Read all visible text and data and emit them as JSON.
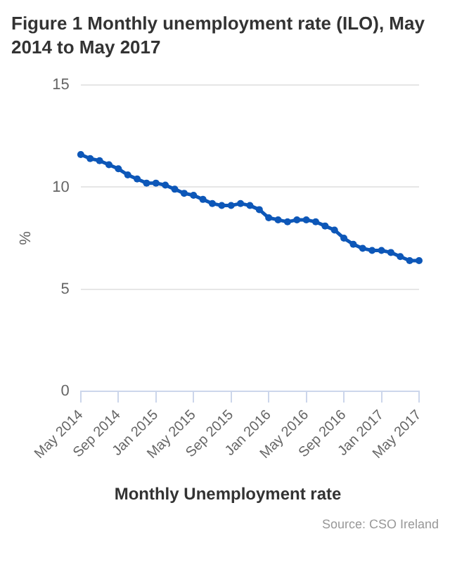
{
  "chart_data": {
    "type": "line",
    "title": "Figure 1 Monthly unemployment rate (ILO), May 2014 to May 2017",
    "ylabel": "%",
    "categories": [
      "May 2014",
      null,
      null,
      null,
      "Sep 2014",
      null,
      null,
      null,
      "Jan 2015",
      null,
      null,
      null,
      "May 2015",
      null,
      null,
      null,
      "Sep 2015",
      null,
      null,
      null,
      "Jan 2016",
      null,
      null,
      null,
      "May 2016",
      null,
      null,
      null,
      "Sep 2016",
      null,
      null,
      null,
      "Jan 2017",
      null,
      null,
      null,
      "May 2017"
    ],
    "series": [
      {
        "name": "Monthly Unemployment rate",
        "color": "#0d57b8",
        "values": [
          11.6,
          11.4,
          11.3,
          11.1,
          10.9,
          10.6,
          10.4,
          10.2,
          10.2,
          10.1,
          9.9,
          9.7,
          9.6,
          9.4,
          9.2,
          9.1,
          9.1,
          9.2,
          9.1,
          8.9,
          8.5,
          8.4,
          8.3,
          8.4,
          8.4,
          8.3,
          8.1,
          7.9,
          7.5,
          7.2,
          7.0,
          6.9,
          6.9,
          6.8,
          6.6,
          6.4,
          6.4
        ]
      }
    ],
    "ylim": [
      0,
      15
    ],
    "yticks": [
      0,
      5,
      10,
      15
    ],
    "grid": "y",
    "legend": "bottom",
    "marker": "circle",
    "line_style": "solid",
    "annotations": [
      "Source: CSO Ireland"
    ]
  }
}
